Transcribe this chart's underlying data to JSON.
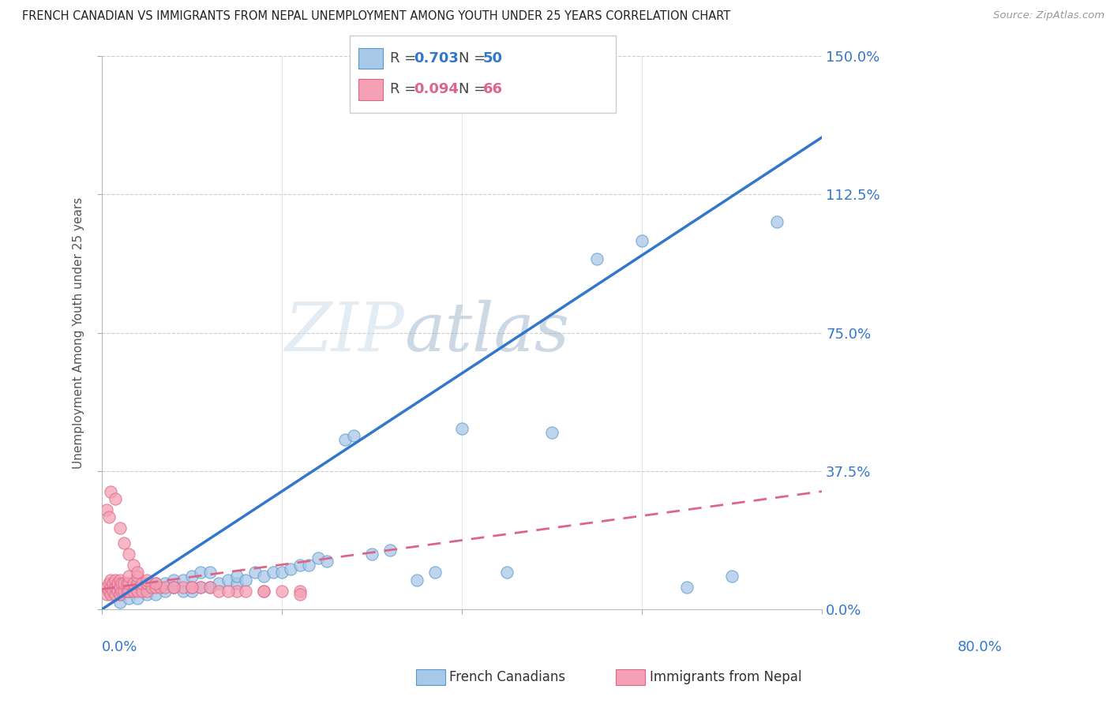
{
  "title": "FRENCH CANADIAN VS IMMIGRANTS FROM NEPAL UNEMPLOYMENT AMONG YOUTH UNDER 25 YEARS CORRELATION CHART",
  "source": "Source: ZipAtlas.com",
  "ylabel": "Unemployment Among Youth under 25 years",
  "xlim": [
    0.0,
    0.8
  ],
  "ylim": [
    0.0,
    1.5
  ],
  "ytick_labels": [
    "0.0%",
    "37.5%",
    "75.0%",
    "112.5%",
    "150.0%"
  ],
  "yticks": [
    0.0,
    0.375,
    0.75,
    1.125,
    1.5
  ],
  "blue_R": 0.703,
  "blue_N": 50,
  "pink_R": 0.094,
  "pink_N": 66,
  "blue_color": "#a8c8e8",
  "pink_color": "#f4a0b5",
  "blue_edge_color": "#5599cc",
  "pink_edge_color": "#dd6688",
  "blue_line_color": "#3377cc",
  "pink_line_color": "#dd6688",
  "watermark_zip_color": "#c5d5e5",
  "watermark_atlas_color": "#aabbd0",
  "legend_label_blue": "French Canadians",
  "legend_label_pink": "Immigrants from Nepal",
  "blue_line_x0": 0.0,
  "blue_line_y0": 0.0,
  "blue_line_x1": 0.8,
  "blue_line_y1": 1.28,
  "pink_line_x0": 0.0,
  "pink_line_y0": 0.055,
  "pink_line_x1": 0.8,
  "pink_line_y1": 0.32,
  "blue_scatter_x": [
    0.02,
    0.02,
    0.03,
    0.03,
    0.04,
    0.04,
    0.05,
    0.05,
    0.06,
    0.06,
    0.07,
    0.07,
    0.08,
    0.08,
    0.09,
    0.09,
    0.1,
    0.1,
    0.11,
    0.11,
    0.12,
    0.12,
    0.13,
    0.14,
    0.15,
    0.15,
    0.16,
    0.17,
    0.18,
    0.19,
    0.2,
    0.21,
    0.22,
    0.23,
    0.24,
    0.25,
    0.27,
    0.28,
    0.3,
    0.32,
    0.35,
    0.37,
    0.4,
    0.45,
    0.5,
    0.55,
    0.6,
    0.65,
    0.7,
    0.75
  ],
  "blue_scatter_y": [
    0.02,
    0.04,
    0.03,
    0.05,
    0.03,
    0.06,
    0.04,
    0.06,
    0.04,
    0.07,
    0.05,
    0.07,
    0.06,
    0.08,
    0.05,
    0.08,
    0.05,
    0.09,
    0.06,
    0.1,
    0.06,
    0.1,
    0.07,
    0.08,
    0.07,
    0.09,
    0.08,
    0.1,
    0.09,
    0.1,
    0.1,
    0.11,
    0.12,
    0.12,
    0.14,
    0.13,
    0.46,
    0.47,
    0.15,
    0.16,
    0.08,
    0.1,
    0.49,
    0.1,
    0.48,
    0.95,
    1.0,
    0.06,
    0.09,
    1.05
  ],
  "pink_scatter_x": [
    0.005,
    0.005,
    0.008,
    0.008,
    0.01,
    0.01,
    0.01,
    0.012,
    0.012,
    0.015,
    0.015,
    0.015,
    0.018,
    0.018,
    0.02,
    0.02,
    0.02,
    0.022,
    0.022,
    0.025,
    0.025,
    0.028,
    0.028,
    0.03,
    0.03,
    0.03,
    0.035,
    0.035,
    0.04,
    0.04,
    0.04,
    0.045,
    0.045,
    0.05,
    0.05,
    0.055,
    0.06,
    0.065,
    0.07,
    0.08,
    0.09,
    0.1,
    0.11,
    0.12,
    0.13,
    0.15,
    0.16,
    0.18,
    0.2,
    0.22,
    0.005,
    0.008,
    0.01,
    0.015,
    0.02,
    0.025,
    0.03,
    0.035,
    0.04,
    0.05,
    0.06,
    0.08,
    0.1,
    0.14,
    0.18,
    0.22
  ],
  "pink_scatter_y": [
    0.04,
    0.06,
    0.05,
    0.07,
    0.04,
    0.06,
    0.08,
    0.05,
    0.07,
    0.04,
    0.06,
    0.08,
    0.05,
    0.07,
    0.04,
    0.06,
    0.08,
    0.05,
    0.07,
    0.05,
    0.07,
    0.05,
    0.07,
    0.05,
    0.07,
    0.09,
    0.05,
    0.07,
    0.05,
    0.07,
    0.09,
    0.05,
    0.07,
    0.05,
    0.07,
    0.06,
    0.06,
    0.06,
    0.06,
    0.06,
    0.06,
    0.06,
    0.06,
    0.06,
    0.05,
    0.05,
    0.05,
    0.05,
    0.05,
    0.05,
    0.27,
    0.25,
    0.32,
    0.3,
    0.22,
    0.18,
    0.15,
    0.12,
    0.1,
    0.08,
    0.07,
    0.06,
    0.06,
    0.05,
    0.05,
    0.04
  ]
}
